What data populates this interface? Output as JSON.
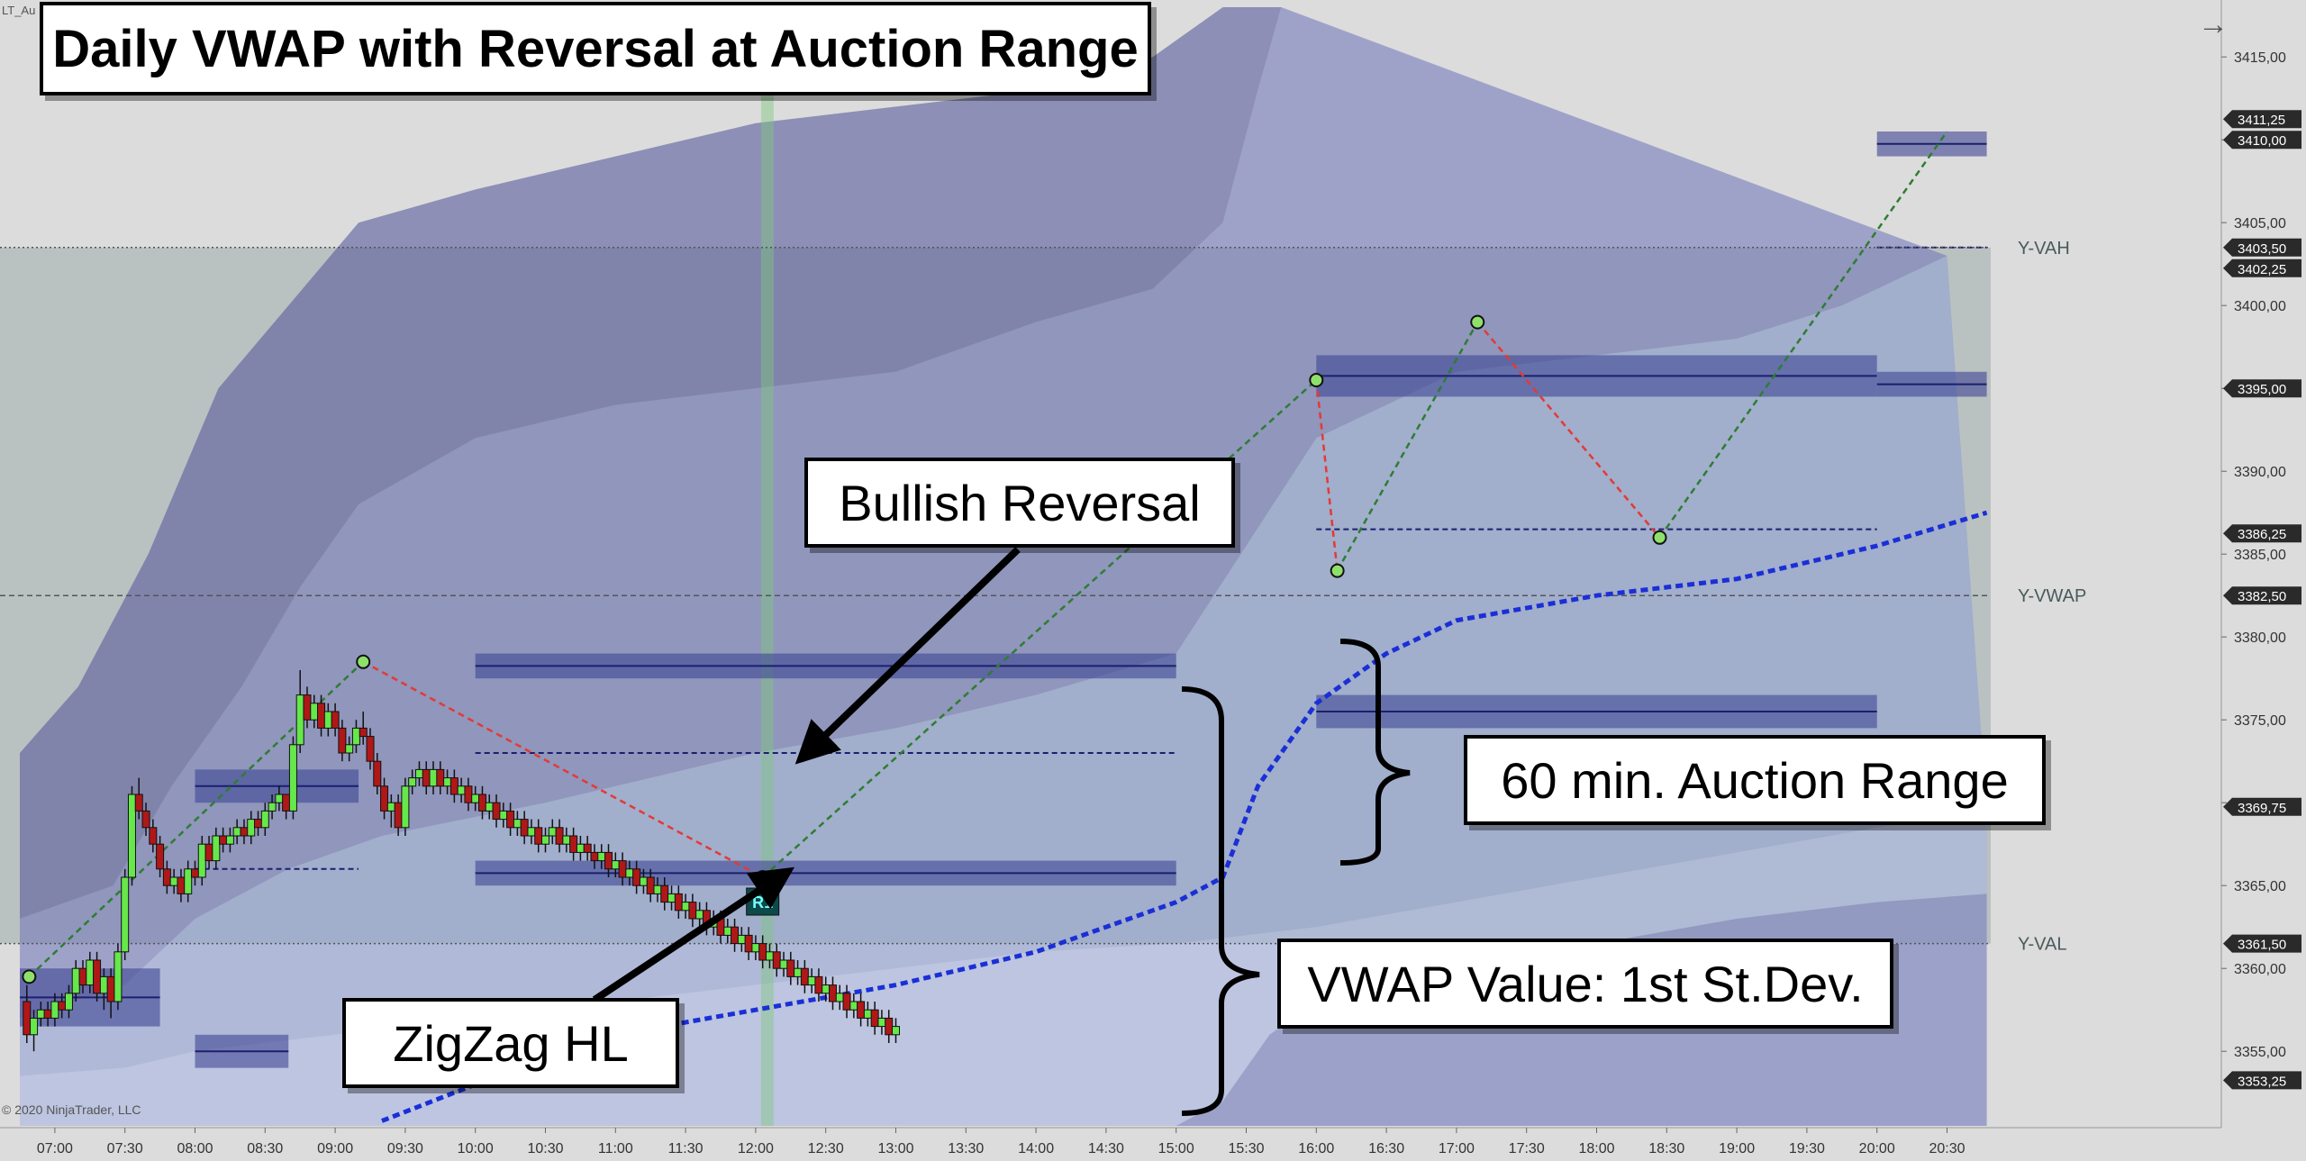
{
  "instrument": "LT_Au",
  "copyright": "© 2020 NinjaTrader, LLC",
  "nav_icon": "arrow-right-icon",
  "callouts": {
    "title": "Daily VWAP with Reversal at Auction Range",
    "bullish": "Bullish Reversal",
    "zigzag": "ZigZag HL",
    "auction": "60 min. Auction Range",
    "vwap": "VWAP Value: 1st St.Dev."
  },
  "chart_data": {
    "type": "candlestick",
    "title": "Daily VWAP with Reversal at Auction Range",
    "ylim": [
      3350.5,
      3417.5
    ],
    "y_ticks": [
      3355,
      3360,
      3365,
      3370,
      3375,
      3380,
      3385,
      3390,
      3395,
      3400,
      3405,
      3410,
      3415
    ],
    "y_tick_labels": [
      "3355,00",
      "3360,00",
      "3365,00",
      "3370,00",
      "3375,00",
      "3380,00",
      "3385,00",
      "3390,00",
      "3395,00",
      "3400,00",
      "3405,00",
      "3410,00",
      "3415,00"
    ],
    "x_tick_labels": [
      "07:00",
      "07:30",
      "08:00",
      "08:30",
      "09:00",
      "09:30",
      "10:00",
      "10:30",
      "11:00",
      "11:30",
      "12:00",
      "12:30",
      "13:00",
      "13:30",
      "14:00",
      "14:30",
      "15:00",
      "15:30",
      "16:00",
      "16:30",
      "17:00",
      "17:30",
      "18:00",
      "18:30",
      "19:00",
      "19:30",
      "20:00",
      "20:30"
    ],
    "x_start": "06:45",
    "x_end": "20:47",
    "price_markers": [
      {
        "value": 3411.25,
        "label": "3411,25"
      },
      {
        "value": 3410.0,
        "label": "3410,00"
      },
      {
        "value": 3403.5,
        "label": "3403,50"
      },
      {
        "value": 3402.25,
        "label": "3402,25"
      },
      {
        "value": 3395.0,
        "label": "3395,00"
      },
      {
        "value": 3386.25,
        "label": "3386,25"
      },
      {
        "value": 3382.5,
        "label": "3382,50"
      },
      {
        "value": 3369.75,
        "label": "3369,75"
      },
      {
        "value": 3361.5,
        "label": "3361,50"
      },
      {
        "value": 3353.25,
        "label": "3353,25"
      }
    ],
    "reference_lines": [
      {
        "name": "Y-VAH",
        "value": 3403.5
      },
      {
        "name": "Y-VWAP",
        "value": 3382.5
      },
      {
        "name": "Y-VAL",
        "value": 3361.5
      }
    ],
    "candles": [
      {
        "t": "06:48",
        "o": 3358.0,
        "h": 3359.0,
        "l": 3355.5,
        "c": 3356.0
      },
      {
        "t": "06:51",
        "o": 3356.0,
        "h": 3357.5,
        "l": 3355.0,
        "c": 3357.0
      },
      {
        "t": "06:54",
        "o": 3357.0,
        "h": 3358.0,
        "l": 3356.5,
        "c": 3357.5
      },
      {
        "t": "06:57",
        "o": 3357.5,
        "h": 3358.0,
        "l": 3356.5,
        "c": 3357.0
      },
      {
        "t": "07:00",
        "o": 3357.0,
        "h": 3358.5,
        "l": 3356.5,
        "c": 3358.0
      },
      {
        "t": "07:03",
        "o": 3358.0,
        "h": 3358.5,
        "l": 3357.0,
        "c": 3357.5
      },
      {
        "t": "07:06",
        "o": 3357.5,
        "h": 3359.0,
        "l": 3357.0,
        "c": 3358.5
      },
      {
        "t": "07:09",
        "o": 3358.5,
        "h": 3360.5,
        "l": 3358.0,
        "c": 3360.0
      },
      {
        "t": "07:12",
        "o": 3360.0,
        "h": 3360.5,
        "l": 3358.5,
        "c": 3359.0
      },
      {
        "t": "07:15",
        "o": 3359.0,
        "h": 3361.0,
        "l": 3358.5,
        "c": 3360.5
      },
      {
        "t": "07:18",
        "o": 3360.5,
        "h": 3361.0,
        "l": 3358.0,
        "c": 3358.5
      },
      {
        "t": "07:21",
        "o": 3358.5,
        "h": 3360.0,
        "l": 3357.5,
        "c": 3359.5
      },
      {
        "t": "07:24",
        "o": 3359.5,
        "h": 3360.0,
        "l": 3357.0,
        "c": 3358.0
      },
      {
        "t": "07:27",
        "o": 3358.0,
        "h": 3361.5,
        "l": 3357.5,
        "c": 3361.0
      },
      {
        "t": "07:30",
        "o": 3361.0,
        "h": 3366.0,
        "l": 3360.5,
        "c": 3365.5
      },
      {
        "t": "07:33",
        "o": 3365.5,
        "h": 3371.0,
        "l": 3365.0,
        "c": 3370.5
      },
      {
        "t": "07:36",
        "o": 3370.5,
        "h": 3371.5,
        "l": 3369.0,
        "c": 3369.5
      },
      {
        "t": "07:39",
        "o": 3369.5,
        "h": 3370.0,
        "l": 3368.0,
        "c": 3368.5
      },
      {
        "t": "07:42",
        "o": 3368.5,
        "h": 3369.0,
        "l": 3367.0,
        "c": 3367.5
      },
      {
        "t": "07:45",
        "o": 3367.5,
        "h": 3368.0,
        "l": 3365.5,
        "c": 3366.0
      },
      {
        "t": "07:48",
        "o": 3366.0,
        "h": 3366.5,
        "l": 3364.5,
        "c": 3365.0
      },
      {
        "t": "07:51",
        "o": 3365.0,
        "h": 3366.0,
        "l": 3364.5,
        "c": 3365.5
      },
      {
        "t": "07:54",
        "o": 3365.5,
        "h": 3366.0,
        "l": 3364.0,
        "c": 3364.5
      },
      {
        "t": "07:57",
        "o": 3364.5,
        "h": 3366.5,
        "l": 3364.0,
        "c": 3366.0
      },
      {
        "t": "08:00",
        "o": 3366.0,
        "h": 3366.5,
        "l": 3365.0,
        "c": 3365.5
      },
      {
        "t": "08:03",
        "o": 3365.5,
        "h": 3368.0,
        "l": 3365.0,
        "c": 3367.5
      },
      {
        "t": "08:06",
        "o": 3367.5,
        "h": 3368.0,
        "l": 3366.0,
        "c": 3366.5
      },
      {
        "t": "08:09",
        "o": 3366.5,
        "h": 3368.5,
        "l": 3366.0,
        "c": 3368.0
      },
      {
        "t": "08:12",
        "o": 3368.0,
        "h": 3368.5,
        "l": 3367.0,
        "c": 3367.5
      },
      {
        "t": "08:15",
        "o": 3367.5,
        "h": 3368.5,
        "l": 3367.0,
        "c": 3368.0
      },
      {
        "t": "08:18",
        "o": 3368.0,
        "h": 3369.0,
        "l": 3367.5,
        "c": 3368.5
      },
      {
        "t": "08:21",
        "o": 3368.5,
        "h": 3369.0,
        "l": 3367.5,
        "c": 3368.0
      },
      {
        "t": "08:24",
        "o": 3368.0,
        "h": 3369.5,
        "l": 3367.5,
        "c": 3369.0
      },
      {
        "t": "08:27",
        "o": 3369.0,
        "h": 3369.5,
        "l": 3368.0,
        "c": 3368.5
      },
      {
        "t": "08:30",
        "o": 3368.5,
        "h": 3370.0,
        "l": 3368.0,
        "c": 3369.5
      },
      {
        "t": "08:33",
        "o": 3369.5,
        "h": 3370.5,
        "l": 3369.0,
        "c": 3370.0
      },
      {
        "t": "08:36",
        "o": 3370.0,
        "h": 3371.0,
        "l": 3369.5,
        "c": 3370.5
      },
      {
        "t": "08:39",
        "o": 3370.5,
        "h": 3370.5,
        "l": 3369.0,
        "c": 3369.5
      },
      {
        "t": "08:42",
        "o": 3369.5,
        "h": 3374.0,
        "l": 3369.0,
        "c": 3373.5
      },
      {
        "t": "08:45",
        "o": 3373.5,
        "h": 3378.0,
        "l": 3373.0,
        "c": 3376.5
      },
      {
        "t": "08:48",
        "o": 3376.5,
        "h": 3377.0,
        "l": 3374.5,
        "c": 3375.0
      },
      {
        "t": "08:51",
        "o": 3375.0,
        "h": 3376.5,
        "l": 3374.5,
        "c": 3376.0
      },
      {
        "t": "08:54",
        "o": 3376.0,
        "h": 3376.5,
        "l": 3374.0,
        "c": 3374.5
      },
      {
        "t": "08:57",
        "o": 3374.5,
        "h": 3376.0,
        "l": 3374.0,
        "c": 3375.5
      },
      {
        "t": "09:00",
        "o": 3375.5,
        "h": 3376.0,
        "l": 3374.0,
        "c": 3374.5
      },
      {
        "t": "09:03",
        "o": 3374.5,
        "h": 3375.0,
        "l": 3372.5,
        "c": 3373.0
      },
      {
        "t": "09:06",
        "o": 3373.0,
        "h": 3374.0,
        "l": 3372.5,
        "c": 3373.5
      },
      {
        "t": "09:09",
        "o": 3373.5,
        "h": 3375.0,
        "l": 3373.0,
        "c": 3374.5
      },
      {
        "t": "09:12",
        "o": 3374.5,
        "h": 3375.5,
        "l": 3373.5,
        "c": 3374.0
      },
      {
        "t": "09:15",
        "o": 3374.0,
        "h": 3374.5,
        "l": 3372.0,
        "c": 3372.5
      },
      {
        "t": "09:18",
        "o": 3372.5,
        "h": 3373.0,
        "l": 3370.5,
        "c": 3371.0
      },
      {
        "t": "09:21",
        "o": 3371.0,
        "h": 3371.5,
        "l": 3369.0,
        "c": 3369.5
      },
      {
        "t": "09:24",
        "o": 3369.5,
        "h": 3370.5,
        "l": 3368.5,
        "c": 3370.0
      },
      {
        "t": "09:27",
        "o": 3370.0,
        "h": 3370.5,
        "l": 3368.0,
        "c": 3368.5
      },
      {
        "t": "09:30",
        "o": 3368.5,
        "h": 3371.5,
        "l": 3368.0,
        "c": 3371.0
      },
      {
        "t": "09:33",
        "o": 3371.0,
        "h": 3372.0,
        "l": 3370.5,
        "c": 3371.5
      },
      {
        "t": "09:36",
        "o": 3371.5,
        "h": 3372.5,
        "l": 3371.0,
        "c": 3372.0
      },
      {
        "t": "09:39",
        "o": 3372.0,
        "h": 3372.5,
        "l": 3370.5,
        "c": 3371.0
      },
      {
        "t": "09:42",
        "o": 3371.0,
        "h": 3372.5,
        "l": 3370.5,
        "c": 3372.0
      },
      {
        "t": "09:45",
        "o": 3372.0,
        "h": 3372.5,
        "l": 3370.5,
        "c": 3371.0
      },
      {
        "t": "09:48",
        "o": 3371.0,
        "h": 3372.0,
        "l": 3370.5,
        "c": 3371.5
      },
      {
        "t": "09:51",
        "o": 3371.5,
        "h": 3372.0,
        "l": 3370.0,
        "c": 3370.5
      },
      {
        "t": "09:54",
        "o": 3370.5,
        "h": 3371.5,
        "l": 3370.0,
        "c": 3371.0
      },
      {
        "t": "09:57",
        "o": 3371.0,
        "h": 3371.5,
        "l": 3369.5,
        "c": 3370.0
      },
      {
        "t": "10:00",
        "o": 3370.0,
        "h": 3371.0,
        "l": 3369.5,
        "c": 3370.5
      },
      {
        "t": "10:03",
        "o": 3370.5,
        "h": 3371.0,
        "l": 3369.0,
        "c": 3369.5
      },
      {
        "t": "10:06",
        "o": 3369.5,
        "h": 3370.5,
        "l": 3369.0,
        "c": 3370.0
      },
      {
        "t": "10:09",
        "o": 3370.0,
        "h": 3370.5,
        "l": 3368.5,
        "c": 3369.0
      },
      {
        "t": "10:12",
        "o": 3369.0,
        "h": 3370.0,
        "l": 3368.5,
        "c": 3369.5
      },
      {
        "t": "10:15",
        "o": 3369.5,
        "h": 3370.0,
        "l": 3368.0,
        "c": 3368.5
      },
      {
        "t": "10:18",
        "o": 3368.5,
        "h": 3369.5,
        "l": 3368.0,
        "c": 3369.0
      },
      {
        "t": "10:21",
        "o": 3369.0,
        "h": 3369.5,
        "l": 3367.5,
        "c": 3368.0
      },
      {
        "t": "10:24",
        "o": 3368.0,
        "h": 3369.0,
        "l": 3367.5,
        "c": 3368.5
      },
      {
        "t": "10:27",
        "o": 3368.5,
        "h": 3369.0,
        "l": 3367.0,
        "c": 3367.5
      },
      {
        "t": "10:30",
        "o": 3367.5,
        "h": 3368.5,
        "l": 3367.0,
        "c": 3368.0
      },
      {
        "t": "10:33",
        "o": 3368.0,
        "h": 3369.0,
        "l": 3367.5,
        "c": 3368.5
      },
      {
        "t": "10:36",
        "o": 3368.5,
        "h": 3369.0,
        "l": 3367.0,
        "c": 3367.5
      },
      {
        "t": "10:39",
        "o": 3367.5,
        "h": 3368.5,
        "l": 3367.0,
        "c": 3368.0
      },
      {
        "t": "10:42",
        "o": 3368.0,
        "h": 3368.5,
        "l": 3366.5,
        "c": 3367.0
      },
      {
        "t": "10:45",
        "o": 3367.0,
        "h": 3368.0,
        "l": 3366.5,
        "c": 3367.5
      },
      {
        "t": "10:48",
        "o": 3367.5,
        "h": 3368.0,
        "l": 3366.5,
        "c": 3367.0
      },
      {
        "t": "10:51",
        "o": 3367.0,
        "h": 3367.5,
        "l": 3366.0,
        "c": 3366.5
      },
      {
        "t": "10:54",
        "o": 3366.5,
        "h": 3367.5,
        "l": 3366.0,
        "c": 3367.0
      },
      {
        "t": "10:57",
        "o": 3367.0,
        "h": 3367.5,
        "l": 3365.5,
        "c": 3366.0
      },
      {
        "t": "11:00",
        "o": 3366.0,
        "h": 3367.0,
        "l": 3365.5,
        "c": 3366.5
      },
      {
        "t": "11:03",
        "o": 3366.5,
        "h": 3367.0,
        "l": 3365.0,
        "c": 3365.5
      },
      {
        "t": "11:06",
        "o": 3365.5,
        "h": 3366.5,
        "l": 3365.0,
        "c": 3366.0
      },
      {
        "t": "11:09",
        "o": 3366.0,
        "h": 3366.5,
        "l": 3364.5,
        "c": 3365.0
      },
      {
        "t": "11:12",
        "o": 3365.0,
        "h": 3366.0,
        "l": 3364.5,
        "c": 3365.5
      },
      {
        "t": "11:15",
        "o": 3365.5,
        "h": 3366.0,
        "l": 3364.0,
        "c": 3364.5
      },
      {
        "t": "11:18",
        "o": 3364.5,
        "h": 3365.5,
        "l": 3364.0,
        "c": 3365.0
      },
      {
        "t": "11:21",
        "o": 3365.0,
        "h": 3365.5,
        "l": 3363.5,
        "c": 3364.0
      },
      {
        "t": "11:24",
        "o": 3364.0,
        "h": 3365.0,
        "l": 3363.5,
        "c": 3364.5
      },
      {
        "t": "11:27",
        "o": 3364.5,
        "h": 3365.0,
        "l": 3363.0,
        "c": 3363.5
      },
      {
        "t": "11:30",
        "o": 3363.5,
        "h": 3364.5,
        "l": 3363.0,
        "c": 3364.0
      },
      {
        "t": "11:33",
        "o": 3364.0,
        "h": 3364.5,
        "l": 3362.5,
        "c": 3363.0
      },
      {
        "t": "11:36",
        "o": 3363.0,
        "h": 3364.0,
        "l": 3362.5,
        "c": 3363.5
      },
      {
        "t": "11:39",
        "o": 3363.5,
        "h": 3364.0,
        "l": 3362.0,
        "c": 3362.5
      },
      {
        "t": "11:42",
        "o": 3362.5,
        "h": 3363.5,
        "l": 3362.0,
        "c": 3363.0
      },
      {
        "t": "11:45",
        "o": 3363.0,
        "h": 3363.5,
        "l": 3361.5,
        "c": 3362.0
      },
      {
        "t": "11:48",
        "o": 3362.0,
        "h": 3363.0,
        "l": 3361.5,
        "c": 3362.5
      },
      {
        "t": "11:51",
        "o": 3362.5,
        "h": 3363.0,
        "l": 3361.0,
        "c": 3361.5
      },
      {
        "t": "11:54",
        "o": 3361.5,
        "h": 3362.5,
        "l": 3361.0,
        "c": 3362.0
      },
      {
        "t": "11:57",
        "o": 3362.0,
        "h": 3362.5,
        "l": 3360.5,
        "c": 3361.0
      },
      {
        "t": "12:00",
        "o": 3361.0,
        "h": 3362.0,
        "l": 3360.5,
        "c": 3361.5
      },
      {
        "t": "12:03",
        "o": 3361.5,
        "h": 3362.0,
        "l": 3360.0,
        "c": 3360.5
      },
      {
        "t": "12:06",
        "o": 3360.5,
        "h": 3361.5,
        "l": 3360.0,
        "c": 3361.0
      },
      {
        "t": "12:09",
        "o": 3361.0,
        "h": 3361.5,
        "l": 3359.5,
        "c": 3360.0
      },
      {
        "t": "12:12",
        "o": 3360.0,
        "h": 3361.0,
        "l": 3359.5,
        "c": 3360.5
      },
      {
        "t": "12:15",
        "o": 3360.5,
        "h": 3361.0,
        "l": 3359.0,
        "c": 3359.5
      },
      {
        "t": "12:18",
        "o": 3359.5,
        "h": 3360.5,
        "l": 3359.0,
        "c": 3360.0
      },
      {
        "t": "12:21",
        "o": 3360.0,
        "h": 3360.5,
        "l": 3358.5,
        "c": 3359.0
      },
      {
        "t": "12:24",
        "o": 3359.0,
        "h": 3360.0,
        "l": 3358.5,
        "c": 3359.5
      },
      {
        "t": "12:27",
        "o": 3359.5,
        "h": 3360.0,
        "l": 3358.0,
        "c": 3358.5
      },
      {
        "t": "12:30",
        "o": 3358.5,
        "h": 3359.5,
        "l": 3358.0,
        "c": 3359.0
      },
      {
        "t": "12:33",
        "o": 3359.0,
        "h": 3359.5,
        "l": 3357.5,
        "c": 3358.0
      },
      {
        "t": "12:36",
        "o": 3358.0,
        "h": 3359.0,
        "l": 3357.5,
        "c": 3358.5
      },
      {
        "t": "12:39",
        "o": 3358.5,
        "h": 3359.0,
        "l": 3357.0,
        "c": 3357.5
      },
      {
        "t": "12:42",
        "o": 3357.5,
        "h": 3358.5,
        "l": 3357.0,
        "c": 3358.0
      },
      {
        "t": "12:45",
        "o": 3358.0,
        "h": 3358.5,
        "l": 3356.5,
        "c": 3357.0
      },
      {
        "t": "12:48",
        "o": 3357.0,
        "h": 3358.0,
        "l": 3356.5,
        "c": 3357.5
      },
      {
        "t": "12:51",
        "o": 3357.5,
        "h": 3358.0,
        "l": 3356.0,
        "c": 3356.5
      },
      {
        "t": "12:54",
        "o": 3356.5,
        "h": 3357.5,
        "l": 3356.0,
        "c": 3357.0
      },
      {
        "t": "12:57",
        "o": 3357.0,
        "h": 3357.5,
        "l": 3355.5,
        "c": 3356.0
      },
      {
        "t": "13:00",
        "o": 3356.0,
        "h": 3357.0,
        "l": 3355.5,
        "c": 3356.5
      }
    ],
    "zigzag_points": [
      {
        "t": "06:49",
        "v": 3359.5,
        "trend": "up"
      },
      {
        "t": "09:12",
        "v": 3378.5,
        "trend": "down"
      },
      {
        "t": "12:03",
        "v": 3365.5,
        "trend": "up"
      },
      {
        "t": "16:00",
        "v": 3395.5,
        "trend": "down"
      },
      {
        "t": "16:09",
        "v": 3384.0,
        "trend": "up"
      },
      {
        "t": "17:09",
        "v": 3399.0,
        "trend": "down"
      },
      {
        "t": "18:27",
        "v": 3386.0,
        "trend": "up"
      },
      {
        "t": "20:30",
        "v": 3410.5,
        "trend": "end"
      }
    ],
    "reversal_marker": {
      "t": "12:03",
      "v": 3365.5,
      "label": "R1"
    },
    "signal_time": "12:05"
  }
}
